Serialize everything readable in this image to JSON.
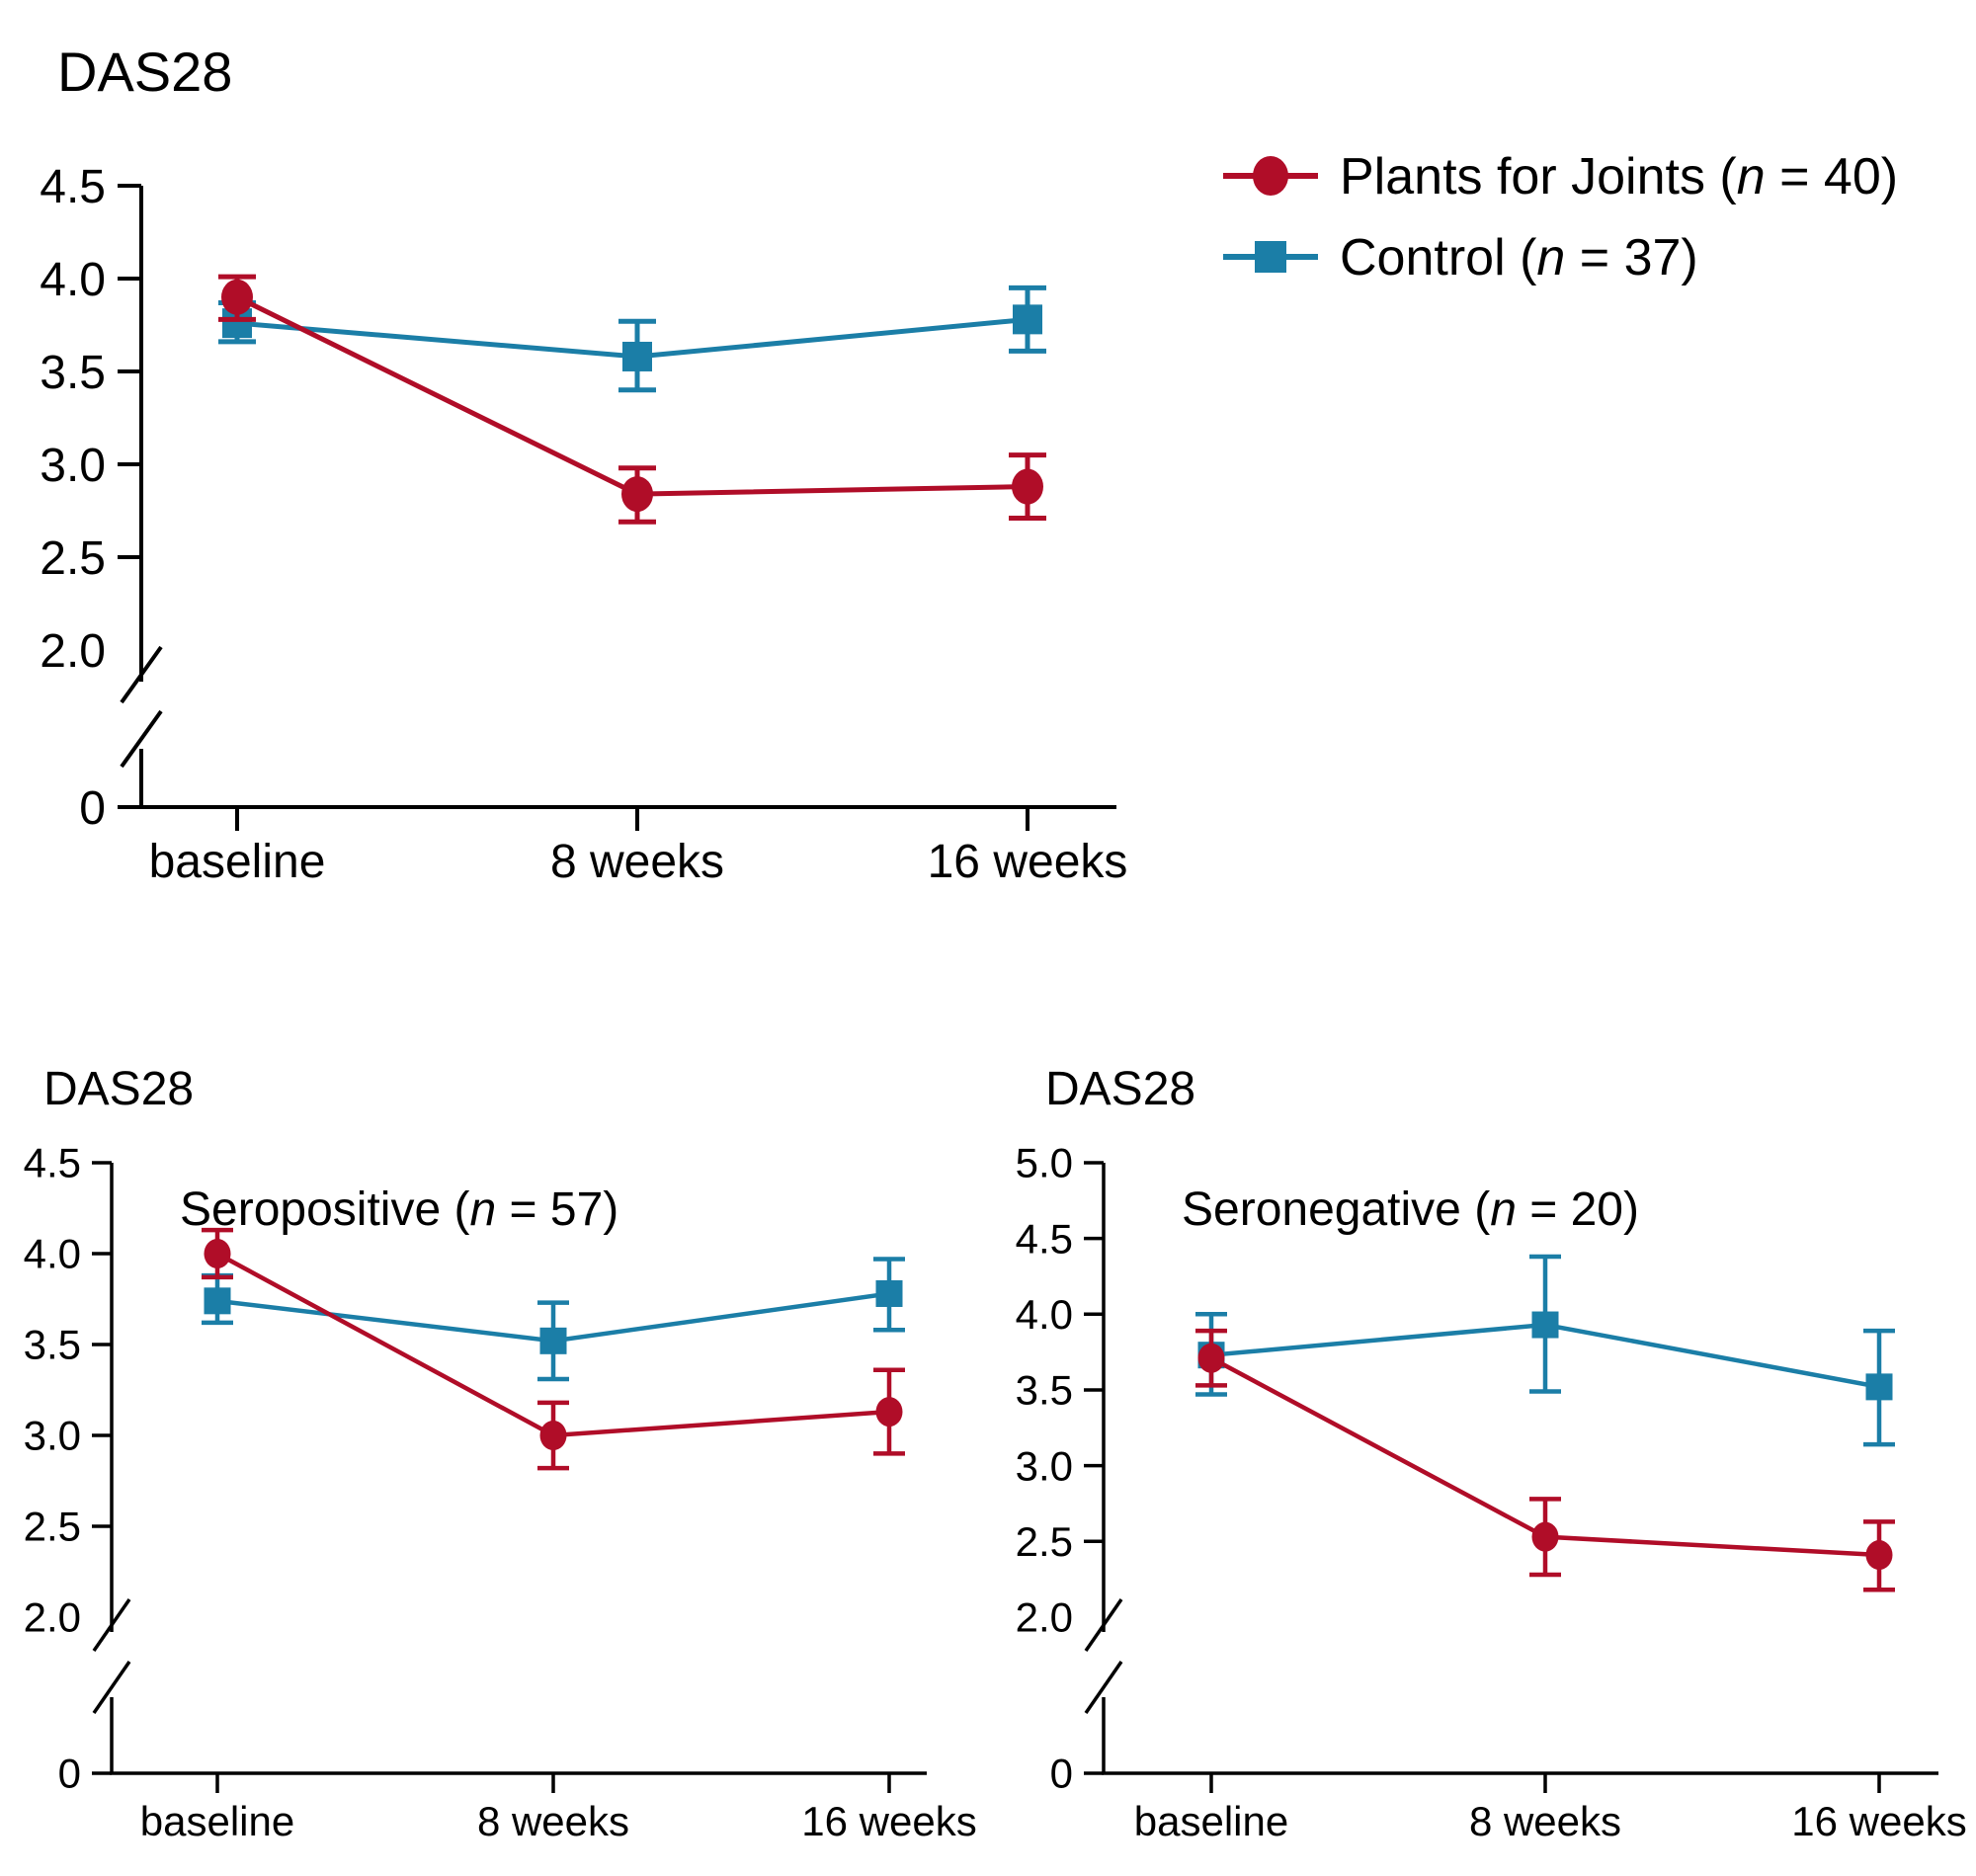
{
  "figure": {
    "background": "#ffffff",
    "axis_color": "#000000",
    "zero_label": "0",
    "legend": {
      "position": "top-right",
      "items": [
        {
          "series_id": "pfj",
          "marker": "circle",
          "color": "#B00D28",
          "pre": "Plants for Joints (",
          "italic": "n",
          "post": " = 40)",
          "text": "Plants for Joints (n = 40)"
        },
        {
          "series_id": "control",
          "marker": "square",
          "color": "#1B7EA7",
          "pre": "Control (",
          "italic": "n",
          "post": " = 37)",
          "text": "Control (n = 37)"
        }
      ]
    }
  },
  "chart_data": [
    {
      "id": "overall",
      "type": "line",
      "title": "DAS28",
      "subtitle": "",
      "subtitle_parts": {
        "pre": "",
        "italic": "",
        "post": ""
      },
      "categories": [
        "baseline",
        "8 weeks",
        "16 weeks"
      ],
      "xlabel": "",
      "ylabel": "DAS28",
      "ylim_shown": [
        2.0,
        4.5
      ],
      "axis_break_to_zero": true,
      "grid": false,
      "legend_position": "top-right",
      "y_axis": {
        "ticks": [
          4.5,
          4.0,
          3.5,
          3.0,
          2.5,
          2.0
        ],
        "tick_labels": [
          "4.5",
          "4.0",
          "3.5",
          "3.0",
          "2.5",
          "2.0"
        ],
        "zero_label": "0"
      },
      "series": [
        {
          "name": "Control (n = 37)",
          "marker": "square",
          "color": "#1B7EA7",
          "values": [
            3.76,
            3.58,
            3.78
          ],
          "ci_low": [
            3.66,
            3.4,
            3.61
          ],
          "ci_high": [
            3.87,
            3.77,
            3.95
          ]
        },
        {
          "name": "Plants for Joints (n = 40)",
          "marker": "circle",
          "color": "#B00D28",
          "values": [
            3.9,
            2.84,
            2.88
          ],
          "ci_low": [
            3.78,
            2.69,
            2.71
          ],
          "ci_high": [
            4.01,
            2.98,
            3.05
          ]
        }
      ]
    },
    {
      "id": "seropositive",
      "type": "line",
      "title": "DAS28",
      "subtitle": "Seropositive (n = 57)",
      "subtitle_parts": {
        "pre": "Seropositive (",
        "italic": "n",
        "post": " = 57)"
      },
      "categories": [
        "baseline",
        "8 weeks",
        "16 weeks"
      ],
      "xlabel": "",
      "ylabel": "DAS28",
      "ylim_shown": [
        2.0,
        4.5
      ],
      "axis_break_to_zero": true,
      "grid": false,
      "legend_position": "none",
      "y_axis": {
        "ticks": [
          4.5,
          4.0,
          3.5,
          3.0,
          2.5,
          2.0
        ],
        "tick_labels": [
          "4.5",
          "4.0",
          "3.5",
          "3.0",
          "2.5",
          "2.0"
        ],
        "zero_label": "0"
      },
      "series": [
        {
          "name": "Control (n = 37)",
          "marker": "square",
          "color": "#1B7EA7",
          "values": [
            3.74,
            3.52,
            3.78
          ],
          "ci_low": [
            3.62,
            3.31,
            3.58
          ],
          "ci_high": [
            3.88,
            3.73,
            3.97
          ]
        },
        {
          "name": "Plants for Joints (n = 40)",
          "marker": "circle",
          "color": "#B00D28",
          "values": [
            4.0,
            3.0,
            3.13
          ],
          "ci_low": [
            3.87,
            2.82,
            2.9
          ],
          "ci_high": [
            4.13,
            3.18,
            3.36
          ]
        }
      ]
    },
    {
      "id": "seronegative",
      "type": "line",
      "title": "DAS28",
      "subtitle": "Seronegative (n = 20)",
      "subtitle_parts": {
        "pre": "Seronegative (",
        "italic": "n",
        "post": " = 20)"
      },
      "categories": [
        "baseline",
        "8 weeks",
        "16 weeks"
      ],
      "xlabel": "",
      "ylabel": "DAS28",
      "ylim_shown": [
        2.0,
        5.0
      ],
      "axis_break_to_zero": true,
      "grid": false,
      "legend_position": "none",
      "y_axis": {
        "ticks": [
          5.0,
          4.5,
          4.0,
          3.5,
          3.0,
          2.5,
          2.0
        ],
        "tick_labels": [
          "5.0",
          "4.5",
          "4.0",
          "3.5",
          "3.0",
          "2.5",
          "2.0"
        ],
        "zero_label": "0"
      },
      "series": [
        {
          "name": "Control (n = 37)",
          "marker": "square",
          "color": "#1B7EA7",
          "values": [
            3.73,
            3.93,
            3.52
          ],
          "ci_low": [
            3.47,
            3.49,
            3.14
          ],
          "ci_high": [
            4.0,
            4.38,
            3.89
          ]
        },
        {
          "name": "Plants for Joints (n = 40)",
          "marker": "circle",
          "color": "#B00D28",
          "values": [
            3.71,
            2.53,
            2.41
          ],
          "ci_low": [
            3.53,
            2.28,
            2.18
          ],
          "ci_high": [
            3.89,
            2.78,
            2.63
          ]
        }
      ]
    }
  ]
}
